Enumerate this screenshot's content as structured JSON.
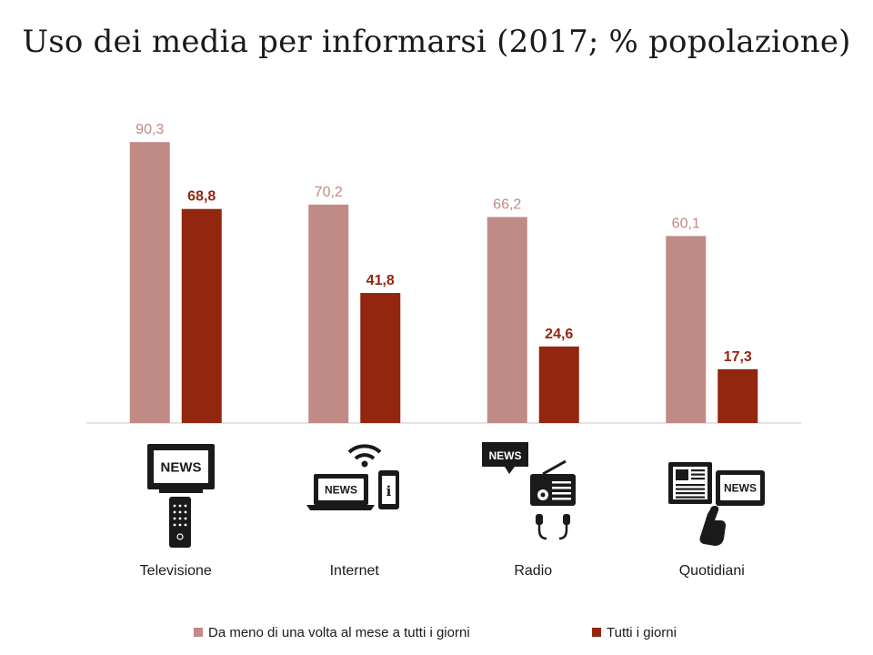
{
  "chart_data": {
    "type": "bar",
    "title": "Uso dei media per informarsi (2017; % popolazione)",
    "categories": [
      "Televisione",
      "Internet",
      "Radio",
      "Quotidiani"
    ],
    "series": [
      {
        "name": "Da meno di una volta al mese a tutti i giorni",
        "values": [
          90.3,
          70.2,
          66.2,
          60.1
        ],
        "labels": [
          "90,3",
          "70,2",
          "66,2",
          "60,1"
        ],
        "color": "#c08a85"
      },
      {
        "name": "Tutti i giorni",
        "values": [
          68.8,
          41.8,
          24.6,
          17.3
        ],
        "labels": [
          "68,8",
          "41,8",
          "24,6",
          "17,3"
        ],
        "color": "#92260f"
      }
    ],
    "ylim": [
      0,
      100
    ],
    "grid": false,
    "legend": "bottom",
    "label_colors": [
      "#c08a85",
      "#92260f"
    ],
    "category_icons": [
      "tv-news-icon",
      "internet-news-icon",
      "radio-news-icon",
      "newspaper-news-icon"
    ],
    "icon_text": "NEWS"
  }
}
